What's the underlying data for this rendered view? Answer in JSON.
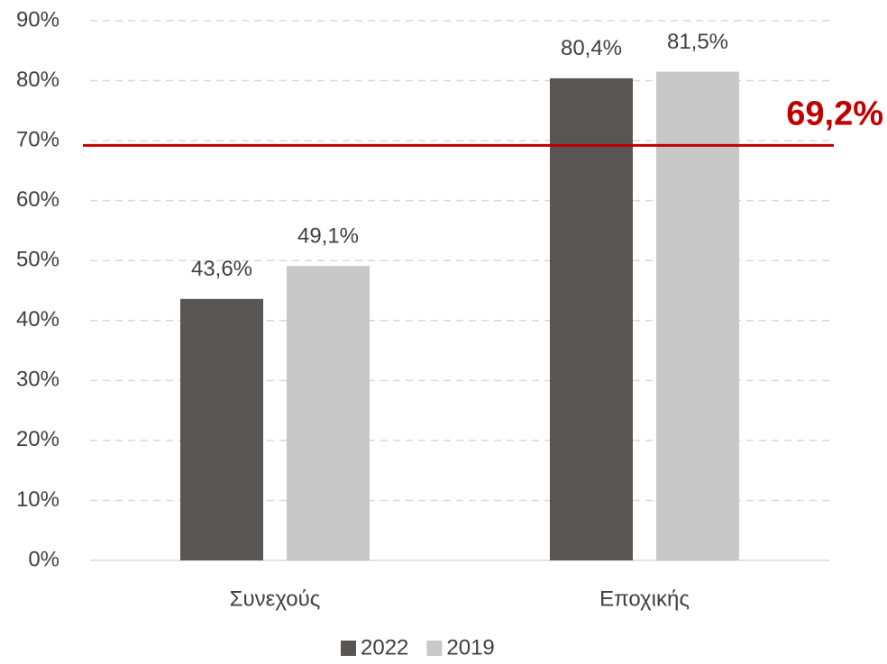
{
  "chart_data": {
    "type": "bar",
    "categories": [
      "Συνεχούς",
      "Εποχικής"
    ],
    "series": [
      {
        "name": "2022",
        "color": "#595553",
        "values": [
          43.6,
          80.4
        ],
        "value_labels": [
          "43,6%",
          "80,4%"
        ]
      },
      {
        "name": "2019",
        "color": "#c8c8c8",
        "values": [
          49.1,
          81.5
        ],
        "value_labels": [
          "49,1%",
          "81,5%"
        ]
      }
    ],
    "ylim": [
      0,
      90
    ],
    "yticks": [
      {
        "value": 0,
        "label": "0%"
      },
      {
        "value": 10,
        "label": "10%"
      },
      {
        "value": 20,
        "label": "20%"
      },
      {
        "value": 30,
        "label": "30%"
      },
      {
        "value": 40,
        "label": "40%"
      },
      {
        "value": 50,
        "label": "50%"
      },
      {
        "value": 60,
        "label": "60%"
      },
      {
        "value": 70,
        "label": "70%"
      },
      {
        "value": 80,
        "label": "80%"
      },
      {
        "value": 90,
        "label": "90%"
      }
    ],
    "grid": true,
    "legend": "bottom",
    "reference_line": {
      "value": 69.2,
      "label": "69,2%",
      "color": "#c00000"
    }
  }
}
